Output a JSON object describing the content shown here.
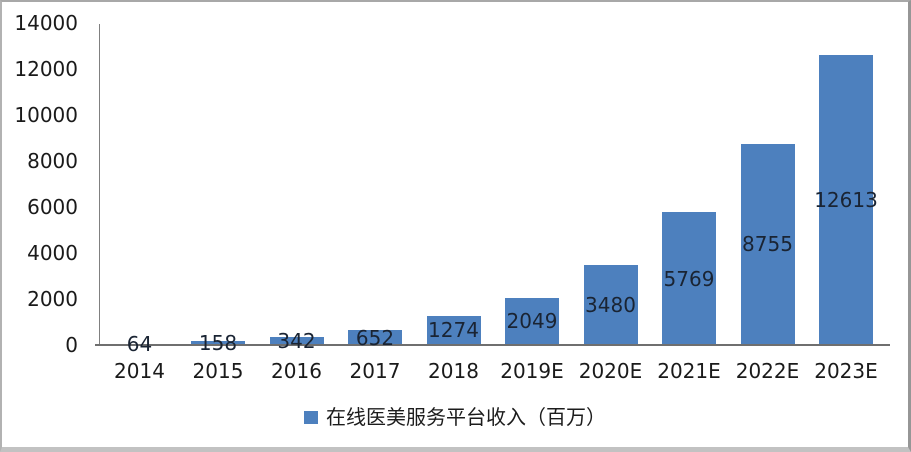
{
  "chart_data": {
    "type": "bar",
    "categories": [
      "2014",
      "2015",
      "2016",
      "2017",
      "2018",
      "2019E",
      "2020E",
      "2021E",
      "2022E",
      "2023E"
    ],
    "values": [
      64,
      158,
      342,
      652,
      1274,
      2049,
      3480,
      5769,
      8755,
      12613
    ],
    "series_name": "在线医美服务平台收入（百万）",
    "title": "",
    "xlabel": "",
    "ylabel": "",
    "ylim": [
      0,
      14000
    ],
    "yticks": [
      0,
      2000,
      4000,
      6000,
      8000,
      10000,
      12000,
      14000
    ],
    "grid": false,
    "legend_position": "bottom-center",
    "data_label_position": "inside-center",
    "bar_color": "#4d80be",
    "data_label_color": "#1a2433",
    "axis_line_color": "#808080",
    "baseline_color": "#6f6f6f",
    "tick_label_color": "#1a1a1a"
  },
  "legend": {
    "marker": "square"
  }
}
